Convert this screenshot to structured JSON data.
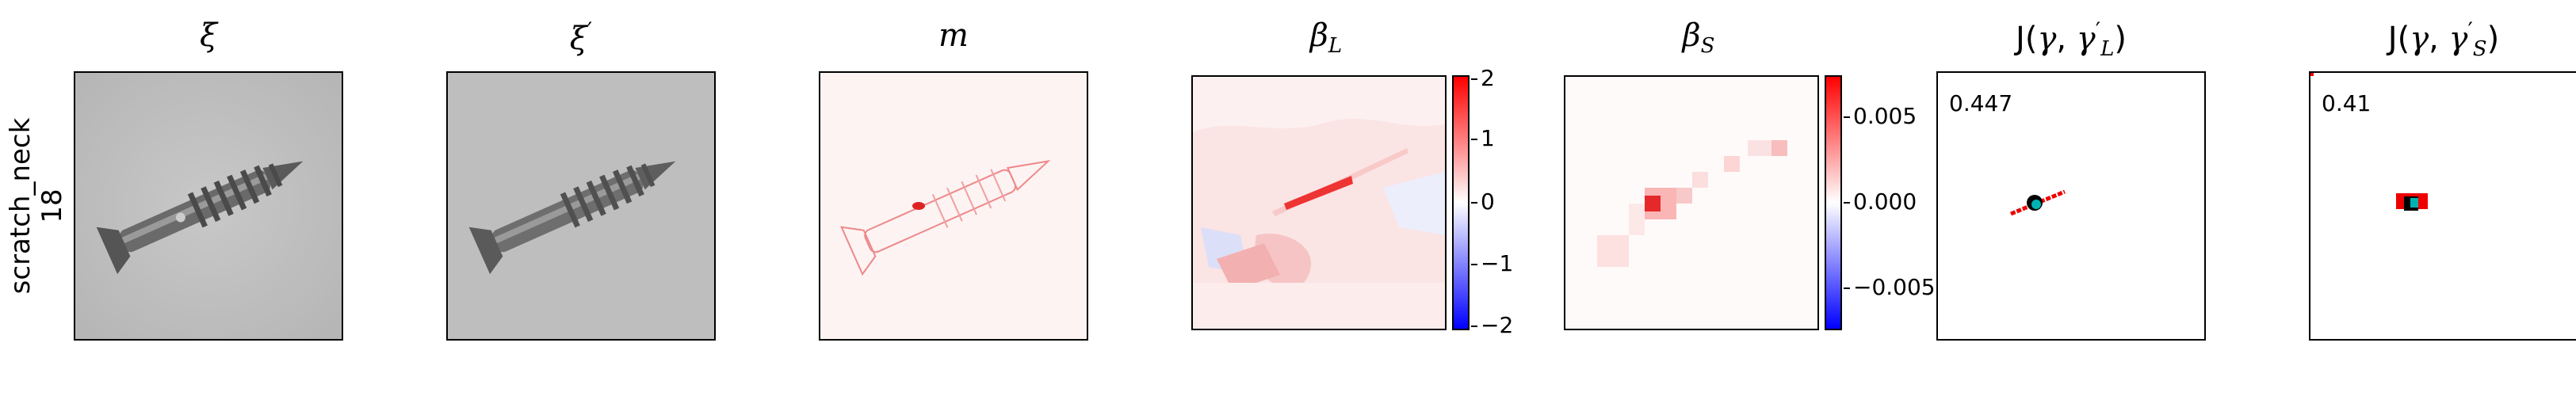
{
  "row": {
    "category": "scratch_neck",
    "index": "18"
  },
  "panels": [
    {
      "symbol": "ξ",
      "prime": ""
    },
    {
      "symbol": "ξ",
      "prime": "′"
    },
    {
      "symbol": "m",
      "prime": ""
    },
    {
      "symbol": "β",
      "sub": "L"
    },
    {
      "symbol": "β",
      "sub": "S"
    },
    {
      "func": "J(",
      "arg1": "γ",
      "sep": ", ",
      "arg2": "γ",
      "arg2prime": "′",
      "arg2sub": "L",
      "close": ")"
    },
    {
      "func": "J(",
      "arg1": "γ",
      "sep": ", ",
      "arg2": "γ",
      "arg2prime": "′",
      "arg2sub": "S",
      "close": ")"
    }
  ],
  "colorbar_L": {
    "ticks": [
      "2",
      "1",
      "0",
      "−1",
      "−2"
    ],
    "range": [
      -2,
      2
    ],
    "colors": {
      "high": "#ff0000",
      "mid": "#ffffff",
      "low": "#0000ff"
    }
  },
  "colorbar_S": {
    "ticks": [
      "0.005",
      "0.000",
      "−0.005"
    ],
    "range": [
      -0.0075,
      0.0075
    ]
  },
  "scores": {
    "J_L": "0.447",
    "J_S": "0.41"
  },
  "marks": {
    "point_color": "#000000",
    "dot_color": "#00b3b3",
    "mask_color": "#ff0000"
  }
}
